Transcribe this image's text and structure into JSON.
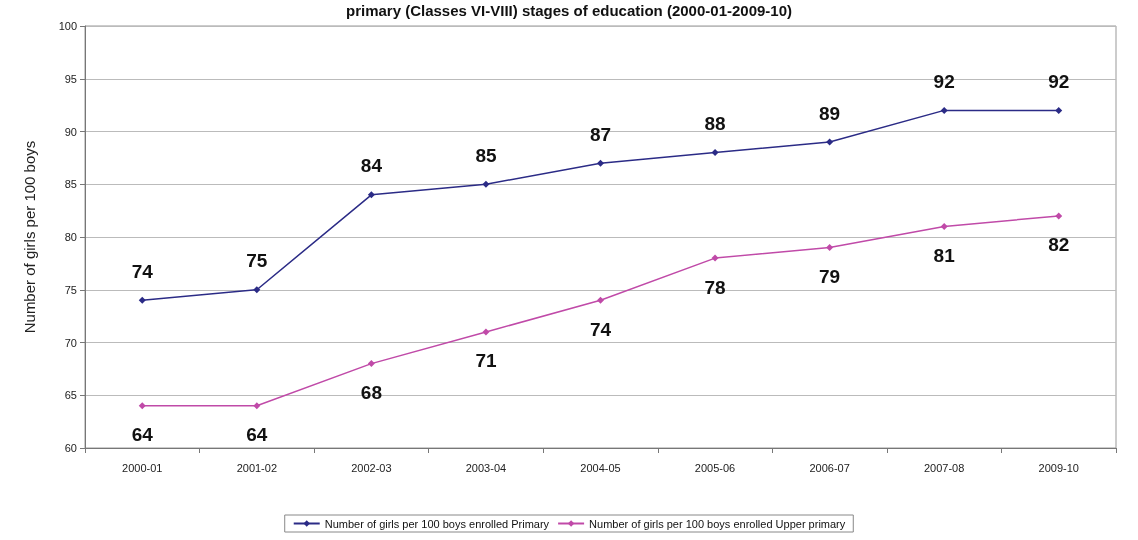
{
  "chart_data": {
    "type": "line",
    "title": "primary (Classes VI-VIII) stages of education (2000-01-2009-10)",
    "ylabel": "Number of girls per 100 boys",
    "categories": [
      "2000-01",
      "2001-02",
      "2002-03",
      "2003-04",
      "2004-05",
      "2005-06",
      "2006-07",
      "2007-08",
      "2009-10"
    ],
    "series": [
      {
        "name": "Number of girls per 100 boys enrolled Primary",
        "color": "#2b2b86",
        "values": [
          74,
          75,
          84,
          85,
          87,
          88,
          89,
          92,
          92
        ]
      },
      {
        "name": "Number of girls per 100 boys enrolled Upper primary",
        "color": "#c04aa8",
        "values": [
          64,
          64,
          68,
          71,
          74,
          78,
          79,
          81,
          82
        ]
      }
    ],
    "ylim": [
      60,
      100
    ],
    "yticks": [
      60,
      65,
      70,
      75,
      80,
      85,
      90,
      95,
      100
    ],
    "grid": "y",
    "legend": "bottom",
    "marker": "diamond",
    "line_style": "solid",
    "data_labels": true
  }
}
